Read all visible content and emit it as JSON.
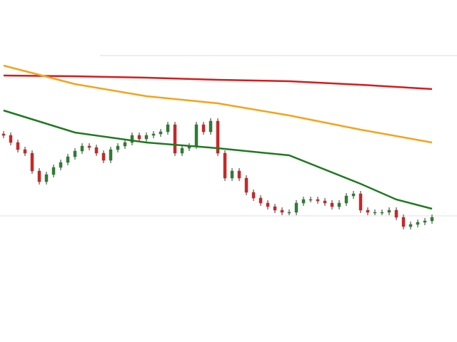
{
  "chart_data": {
    "type": "candlestick",
    "up_color": "#2e7d32",
    "down_color": "#c62828",
    "ylim": [
      0,
      480
    ],
    "open": [
      292,
      290,
      280,
      270,
      265,
      240,
      225,
      235,
      245,
      252,
      260,
      268,
      275,
      273,
      265,
      255,
      270,
      275,
      280,
      290,
      285,
      290,
      292,
      295,
      305,
      265,
      272,
      275,
      305,
      295,
      310,
      265,
      230,
      240,
      230,
      210,
      202,
      195,
      190,
      185,
      182,
      182,
      195,
      200,
      200,
      198,
      195,
      190,
      195,
      205,
      208,
      185,
      182,
      182,
      182,
      185,
      175,
      162,
      165,
      168,
      170
    ],
    "high": [
      296,
      294,
      284,
      274,
      269,
      244,
      239,
      249,
      256,
      264,
      272,
      279,
      279,
      277,
      269,
      274,
      279,
      284,
      294,
      294,
      294,
      296,
      299,
      309,
      309,
      276,
      279,
      309,
      309,
      314,
      314,
      269,
      244,
      244,
      234,
      214,
      206,
      199,
      194,
      189,
      186,
      199,
      204,
      204,
      204,
      202,
      199,
      199,
      209,
      212,
      212,
      189,
      186,
      186,
      189,
      189,
      179,
      169,
      172,
      174,
      179
    ],
    "low": [
      286,
      276,
      266,
      261,
      236,
      221,
      221,
      231,
      241,
      248,
      256,
      264,
      269,
      261,
      251,
      251,
      266,
      271,
      276,
      281,
      281,
      286,
      288,
      291,
      261,
      261,
      268,
      271,
      291,
      291,
      261,
      226,
      226,
      226,
      206,
      198,
      191,
      186,
      181,
      178,
      178,
      178,
      191,
      196,
      194,
      191,
      186,
      186,
      191,
      201,
      181,
      178,
      178,
      178,
      178,
      171,
      158,
      158,
      161,
      164,
      166
    ],
    "close": [
      290,
      280,
      270,
      265,
      240,
      225,
      235,
      245,
      252,
      260,
      268,
      275,
      273,
      265,
      255,
      270,
      275,
      280,
      290,
      285,
      290,
      292,
      295,
      305,
      265,
      272,
      275,
      305,
      295,
      310,
      265,
      230,
      240,
      230,
      210,
      202,
      195,
      190,
      185,
      182,
      182,
      195,
      200,
      200,
      198,
      195,
      190,
      195,
      205,
      208,
      185,
      182,
      182,
      182,
      185,
      175,
      162,
      165,
      168,
      170,
      175
    ],
    "ma_lines": [
      {
        "color": "#d81b1b",
        "x": [
          0,
          10,
          20,
          30,
          40,
          50,
          60
        ],
        "values": [
          374,
          373,
          371,
          368,
          366,
          361,
          355
        ]
      },
      {
        "color": "#f5a31a",
        "x": [
          0,
          10,
          20,
          30,
          40,
          50,
          60
        ],
        "values": [
          388,
          362,
          345,
          335,
          318,
          298,
          280
        ]
      },
      {
        "color": "#1f7a1f",
        "x": [
          0,
          10,
          20,
          30,
          40,
          50,
          55,
          60
        ],
        "values": [
          325,
          294,
          280,
          272,
          262,
          222,
          200,
          187
        ]
      }
    ]
  }
}
